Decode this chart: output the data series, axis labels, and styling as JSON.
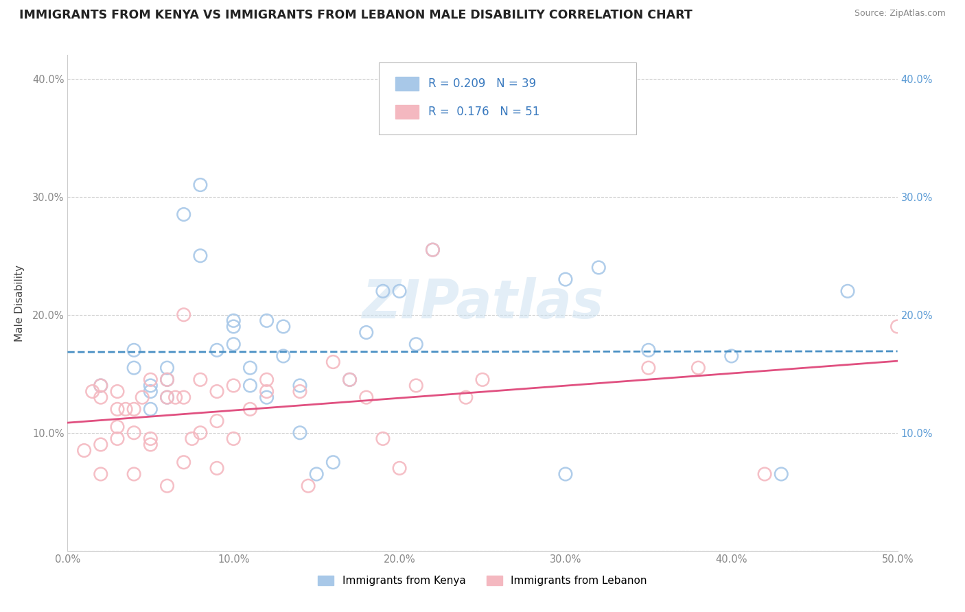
{
  "title": "IMMIGRANTS FROM KENYA VS IMMIGRANTS FROM LEBANON MALE DISABILITY CORRELATION CHART",
  "source": "Source: ZipAtlas.com",
  "ylabel": "Male Disability",
  "xlim": [
    0.0,
    0.5
  ],
  "ylim": [
    0.0,
    0.42
  ],
  "xticks": [
    0.0,
    0.1,
    0.2,
    0.3,
    0.4,
    0.5
  ],
  "yticks": [
    0.0,
    0.1,
    0.2,
    0.3,
    0.4
  ],
  "xticklabels": [
    "0.0%",
    "10.0%",
    "20.0%",
    "30.0%",
    "40.0%",
    "50.0%"
  ],
  "yticklabels_left": [
    "",
    "10.0%",
    "20.0%",
    "30.0%",
    "40.0%"
  ],
  "yticklabels_right": [
    "",
    "10.0%",
    "20.0%",
    "30.0%",
    "40.0%"
  ],
  "legend_label1": "Immigrants from Kenya",
  "legend_label2": "Immigrants from Lebanon",
  "R1": "0.209",
  "N1": "39",
  "R2": "0.176",
  "N2": "51",
  "color_kenya": "#a8c8e8",
  "color_lebanon": "#f4b8c0",
  "color_line_kenya": "#4a90c4",
  "color_line_lebanon": "#e05080",
  "color_tick_right": "#5b9bd5",
  "color_tick_left": "#888888",
  "color_xtick": "#888888",
  "kenya_x": [
    0.02,
    0.04,
    0.04,
    0.05,
    0.05,
    0.05,
    0.06,
    0.06,
    0.06,
    0.07,
    0.08,
    0.08,
    0.09,
    0.1,
    0.1,
    0.1,
    0.11,
    0.11,
    0.12,
    0.12,
    0.13,
    0.13,
    0.14,
    0.14,
    0.15,
    0.16,
    0.17,
    0.18,
    0.19,
    0.2,
    0.21,
    0.22,
    0.3,
    0.3,
    0.32,
    0.35,
    0.4,
    0.43,
    0.47
  ],
  "kenya_y": [
    0.14,
    0.155,
    0.17,
    0.14,
    0.12,
    0.135,
    0.155,
    0.13,
    0.145,
    0.285,
    0.31,
    0.25,
    0.17,
    0.19,
    0.175,
    0.195,
    0.155,
    0.14,
    0.13,
    0.195,
    0.19,
    0.165,
    0.14,
    0.1,
    0.065,
    0.075,
    0.145,
    0.185,
    0.22,
    0.22,
    0.175,
    0.255,
    0.23,
    0.065,
    0.24,
    0.17,
    0.165,
    0.065,
    0.22
  ],
  "lebanon_x": [
    0.01,
    0.015,
    0.02,
    0.02,
    0.02,
    0.02,
    0.03,
    0.03,
    0.03,
    0.03,
    0.035,
    0.04,
    0.04,
    0.04,
    0.045,
    0.05,
    0.05,
    0.05,
    0.06,
    0.06,
    0.06,
    0.065,
    0.07,
    0.07,
    0.07,
    0.075,
    0.08,
    0.08,
    0.09,
    0.09,
    0.09,
    0.1,
    0.1,
    0.11,
    0.12,
    0.12,
    0.14,
    0.145,
    0.16,
    0.17,
    0.18,
    0.19,
    0.2,
    0.21,
    0.22,
    0.24,
    0.25,
    0.35,
    0.38,
    0.42,
    0.5
  ],
  "lebanon_y": [
    0.085,
    0.135,
    0.13,
    0.09,
    0.065,
    0.14,
    0.135,
    0.105,
    0.12,
    0.095,
    0.12,
    0.1,
    0.065,
    0.12,
    0.13,
    0.145,
    0.09,
    0.095,
    0.145,
    0.13,
    0.055,
    0.13,
    0.2,
    0.13,
    0.075,
    0.095,
    0.145,
    0.1,
    0.11,
    0.07,
    0.135,
    0.14,
    0.095,
    0.12,
    0.145,
    0.135,
    0.135,
    0.055,
    0.16,
    0.145,
    0.13,
    0.095,
    0.07,
    0.14,
    0.255,
    0.13,
    0.145,
    0.155,
    0.155,
    0.065,
    0.19
  ],
  "watermark": "ZIPatlas",
  "background_color": "#ffffff",
  "grid_color": "#cccccc"
}
